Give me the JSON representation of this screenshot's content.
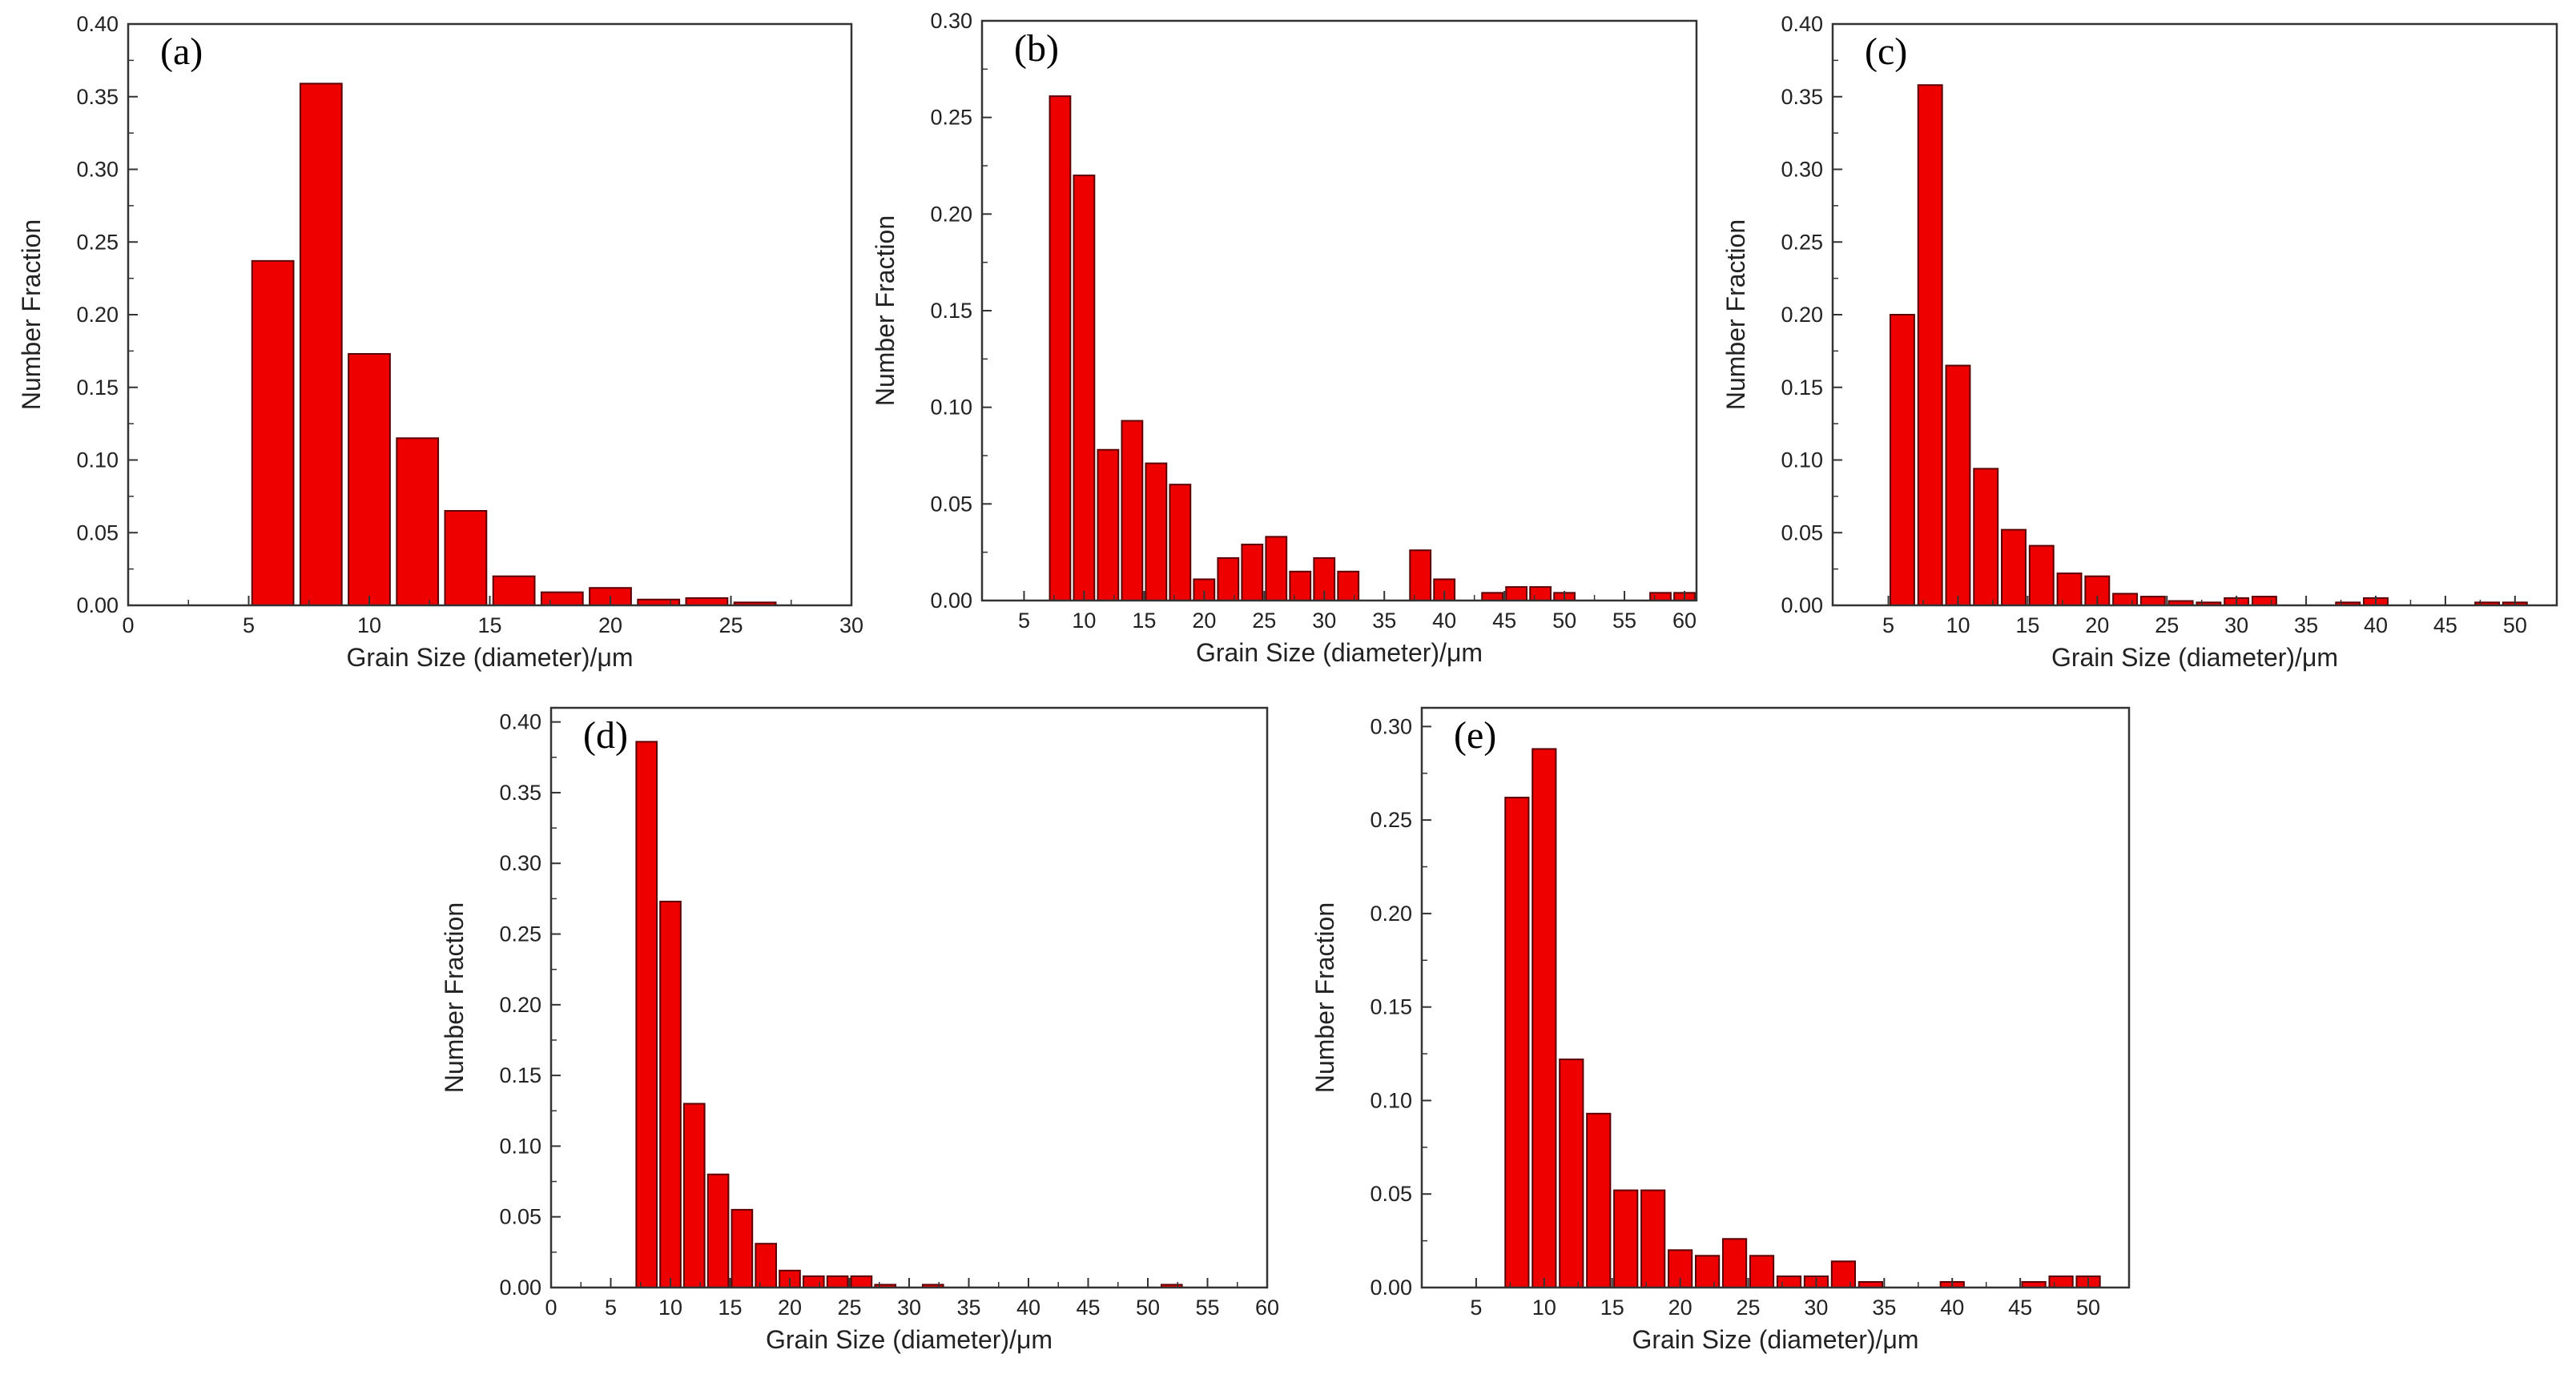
{
  "colors": {
    "bar_fill": "#ee0000",
    "bar_stroke": "#5a0000",
    "axis": "#333333"
  },
  "chart_data": [
    {
      "type": "bar",
      "panel": "(a)",
      "xlabel": "Grain Size (diameter)/μm",
      "ylabel": "Number Fraction",
      "xlim": [
        0,
        30
      ],
      "ylim": [
        0,
        0.4
      ],
      "xticks": [
        0,
        5,
        10,
        15,
        20,
        25,
        30
      ],
      "yticks": [
        0.0,
        0.05,
        0.1,
        0.15,
        0.2,
        0.25,
        0.3,
        0.35,
        0.4
      ],
      "bin_width": 2,
      "x": [
        6,
        8,
        10,
        12,
        14,
        16,
        18,
        20,
        22,
        24,
        26
      ],
      "values": [
        0.237,
        0.359,
        0.173,
        0.115,
        0.065,
        0.02,
        0.009,
        0.012,
        0.004,
        0.005,
        0.002
      ]
    },
    {
      "type": "bar",
      "panel": "(b)",
      "xlabel": "Grain Size (diameter)/μm",
      "ylabel": "Number Fraction",
      "xlim": [
        1.5,
        61
      ],
      "ylim": [
        0,
        0.3
      ],
      "xticks": [
        5,
        10,
        15,
        20,
        25,
        30,
        35,
        40,
        45,
        50,
        55,
        60
      ],
      "yticks": [
        0.0,
        0.05,
        0.1,
        0.15,
        0.2,
        0.25,
        0.3
      ],
      "bin_width": 2,
      "x": [
        8,
        10,
        12,
        14,
        16,
        18,
        20,
        22,
        24,
        26,
        28,
        30,
        32,
        38,
        40,
        44,
        46,
        48,
        50,
        58,
        60
      ],
      "values": [
        0.261,
        0.22,
        0.078,
        0.093,
        0.071,
        0.06,
        0.011,
        0.022,
        0.029,
        0.033,
        0.015,
        0.022,
        0.015,
        0.026,
        0.011,
        0.004,
        0.007,
        0.007,
        0.004,
        0.004,
        0.004
      ]
    },
    {
      "type": "bar",
      "panel": "(c)",
      "xlabel": "Grain Size (diameter)/μm",
      "ylabel": "Number Fraction",
      "xlim": [
        1,
        53
      ],
      "ylim": [
        0,
        0.4
      ],
      "xticks": [
        5,
        10,
        15,
        20,
        25,
        30,
        35,
        40,
        45,
        50
      ],
      "yticks": [
        0.0,
        0.05,
        0.1,
        0.15,
        0.2,
        0.25,
        0.3,
        0.35,
        0.4
      ],
      "bin_width": 2,
      "x": [
        6,
        8,
        10,
        12,
        14,
        16,
        18,
        20,
        22,
        24,
        26,
        28,
        30,
        32,
        38,
        40,
        48,
        50
      ],
      "values": [
        0.2,
        0.358,
        0.165,
        0.094,
        0.052,
        0.041,
        0.022,
        0.02,
        0.008,
        0.006,
        0.003,
        0.002,
        0.005,
        0.006,
        0.002,
        0.005,
        0.002,
        0.002
      ]
    },
    {
      "type": "bar",
      "panel": "(d)",
      "xlabel": "Grain Size (diameter)/μm",
      "ylabel": "Number Fraction",
      "xlim": [
        0,
        60
      ],
      "ylim": [
        0,
        0.41
      ],
      "xticks": [
        0,
        5,
        10,
        15,
        20,
        25,
        30,
        35,
        40,
        45,
        50,
        55,
        60
      ],
      "yticks": [
        0.0,
        0.05,
        0.1,
        0.15,
        0.2,
        0.25,
        0.3,
        0.35,
        0.4
      ],
      "bin_width": 2,
      "x": [
        8,
        10,
        12,
        14,
        16,
        18,
        20,
        22,
        24,
        26,
        28,
        32,
        52
      ],
      "values": [
        0.386,
        0.273,
        0.13,
        0.08,
        0.055,
        0.031,
        0.012,
        0.008,
        0.008,
        0.008,
        0.002,
        0.002,
        0.002
      ]
    },
    {
      "type": "bar",
      "panel": "(e)",
      "xlabel": "Grain Size (diameter)/μm",
      "ylabel": "Number Fraction",
      "xlim": [
        1,
        53
      ],
      "ylim": [
        0,
        0.31
      ],
      "xticks": [
        5,
        10,
        15,
        20,
        25,
        30,
        35,
        40,
        45,
        50
      ],
      "yticks": [
        0.0,
        0.05,
        0.1,
        0.15,
        0.2,
        0.25,
        0.3
      ],
      "bin_width": 2,
      "x": [
        8,
        10,
        12,
        14,
        16,
        18,
        20,
        22,
        24,
        26,
        28,
        30,
        32,
        34,
        40,
        46,
        48,
        50
      ],
      "values": [
        0.262,
        0.288,
        0.122,
        0.093,
        0.052,
        0.052,
        0.02,
        0.017,
        0.026,
        0.017,
        0.006,
        0.006,
        0.014,
        0.003,
        0.003,
        0.003,
        0.006,
        0.006
      ]
    }
  ]
}
